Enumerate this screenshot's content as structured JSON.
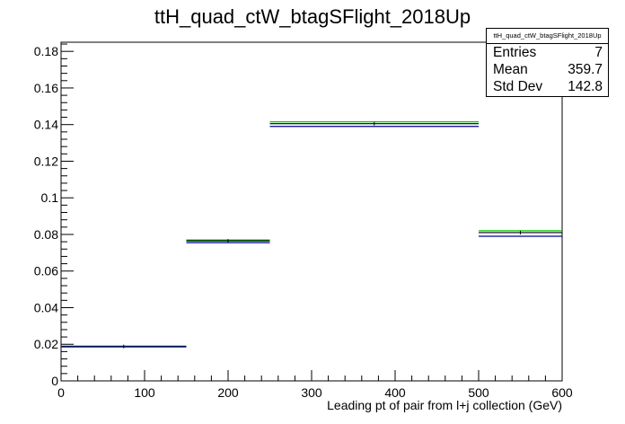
{
  "chart_data": {
    "type": "histogram",
    "title": "ttH_quad_ctW_btagSFlight_2018Up",
    "xlabel": "Leading pt of pair from l+j collection (GeV)",
    "ylabel": "",
    "xlim": [
      0,
      600
    ],
    "ylim": [
      0,
      0.185
    ],
    "x_ticks": [
      0,
      100,
      200,
      300,
      400,
      500,
      600
    ],
    "y_ticks": [
      0,
      0.02,
      0.04,
      0.06,
      0.08,
      0.1,
      0.12,
      0.14,
      0.16,
      0.18
    ],
    "bins": [
      [
        0,
        150
      ],
      [
        150,
        250
      ],
      [
        250,
        500
      ],
      [
        500,
        600
      ]
    ],
    "series": [
      {
        "color": "#00cc00",
        "values": [
          0.019,
          0.077,
          0.1415,
          0.082
        ]
      },
      {
        "color": "#000000",
        "values": [
          0.0188,
          0.0765,
          0.1405,
          0.081
        ]
      },
      {
        "color": "#000099",
        "values": [
          0.0186,
          0.0755,
          0.139,
          0.079
        ]
      }
    ],
    "grid": false
  },
  "stats": {
    "title": "ttH_quad_ctW_btagSFlight_2018Up",
    "rows": [
      {
        "label": "Entries",
        "value": "7"
      },
      {
        "label": "Mean",
        "value": "359.7"
      },
      {
        "label": "Std Dev",
        "value": "142.8"
      }
    ]
  }
}
